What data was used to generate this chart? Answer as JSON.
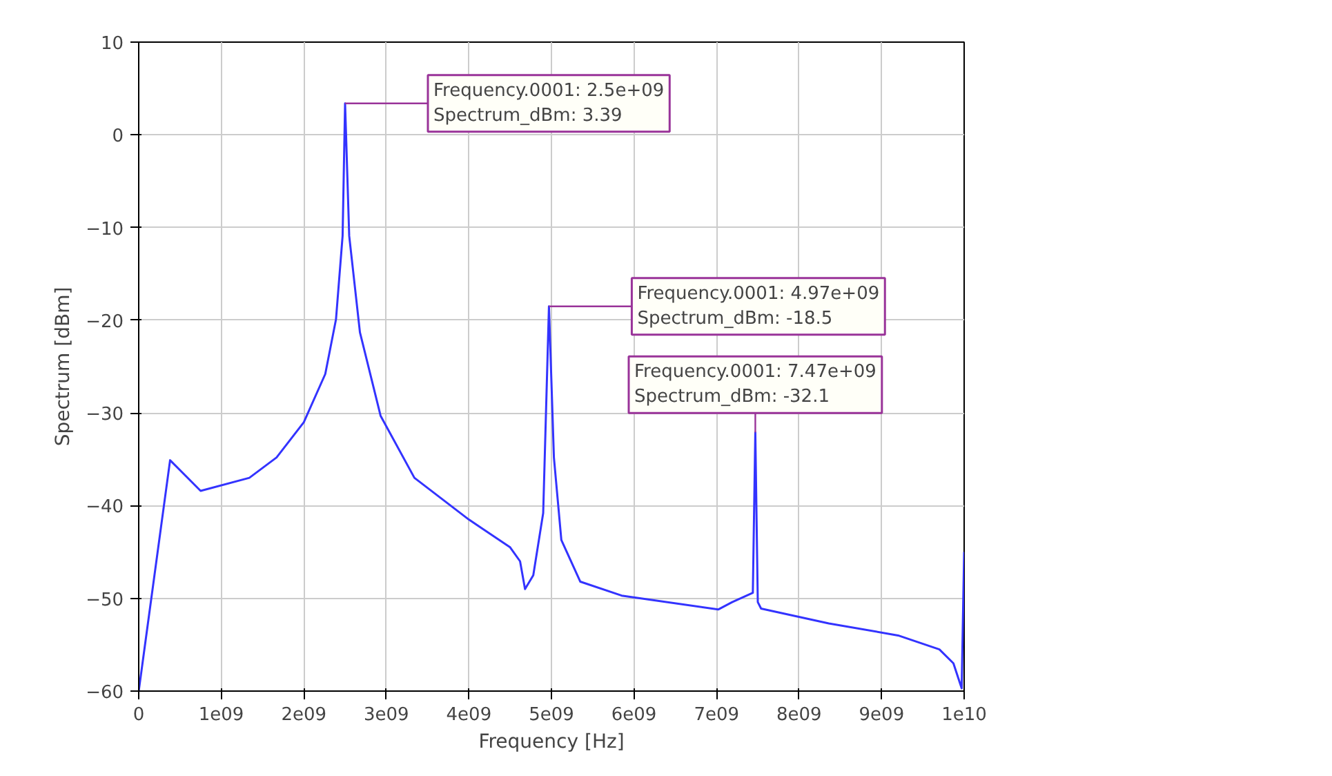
{
  "chart_data": {
    "type": "line",
    "xlabel": "Frequency [Hz]",
    "ylabel": "Spectrum [dBm]",
    "x": [
      0,
      380000000.0,
      750000000.0,
      1340000000.0,
      1670000000.0,
      2000000000.0,
      2260000000.0,
      2390000000.0,
      2470000000.0,
      2500000000.0,
      2550000000.0,
      2680000000.0,
      2930000000.0,
      3340000000.0,
      4000000000.0,
      4500000000.0,
      4620000000.0,
      4680000000.0,
      4780000000.0,
      4900000000.0,
      4970000000.0,
      5030000000.0,
      5120000000.0,
      5350000000.0,
      5850000000.0,
      7020000000.0,
      7190000000.0,
      7440000000.0,
      7470000000.0,
      7500000000.0,
      7540000000.0,
      8360000000.0,
      9200000000.0,
      9700000000.0,
      9870000000.0,
      9970000000.0,
      10000000000.0
    ],
    "series": [
      {
        "color": "#3333ff",
        "values": [
          -60,
          -35.1,
          -38.4,
          -37,
          -34.8,
          -31,
          -25.8,
          -19.9,
          -10.9,
          3.39,
          -10.9,
          -21.3,
          -30.3,
          -37,
          -41.5,
          -44.5,
          -46,
          -49,
          -47.5,
          -40.8,
          -18.5,
          -34.8,
          -43.7,
          -48.2,
          -49.7,
          -51.2,
          -50.4,
          -49.4,
          -32.1,
          -50.4,
          -51.1,
          -52.7,
          -54,
          -55.5,
          -57,
          -59.7,
          -45
        ]
      }
    ],
    "xlim": [
      0,
      10000000000.0
    ],
    "ylim": [
      -60,
      10
    ],
    "xticks": [
      {
        "value": 0,
        "label": "0"
      },
      {
        "value": 1000000000.0,
        "label": "1e09"
      },
      {
        "value": 2000000000.0,
        "label": "2e09"
      },
      {
        "value": 3000000000.0,
        "label": "3e09"
      },
      {
        "value": 4000000000.0,
        "label": "4e09"
      },
      {
        "value": 5000000000.0,
        "label": "5e09"
      },
      {
        "value": 6000000000.0,
        "label": "6e09"
      },
      {
        "value": 7000000000.0,
        "label": "7e09"
      },
      {
        "value": 8000000000.0,
        "label": "8e09"
      },
      {
        "value": 9000000000.0,
        "label": "9e09"
      },
      {
        "value": 10000000000.0,
        "label": "1e10"
      }
    ],
    "yticks": [
      -60,
      -50,
      -40,
      -30,
      -20,
      -10,
      0,
      10
    ],
    "grid": true,
    "marker": "none",
    "line_style": "solid",
    "annotations": [
      {
        "text": "Frequency.0001: 2.5e+09\nSpectrum_dBm: 3.39",
        "x": 2500000000.0,
        "y": 3.39
      },
      {
        "text": "Frequency.0001: 4.97e+09\nSpectrum_dBm: -18.5",
        "x": 4970000000.0,
        "y": -18.5
      },
      {
        "text": "Frequency.0001: 7.47e+09\nSpectrum_dBm: -32.1",
        "x": 7470000000.0,
        "y": -32.1
      }
    ]
  }
}
